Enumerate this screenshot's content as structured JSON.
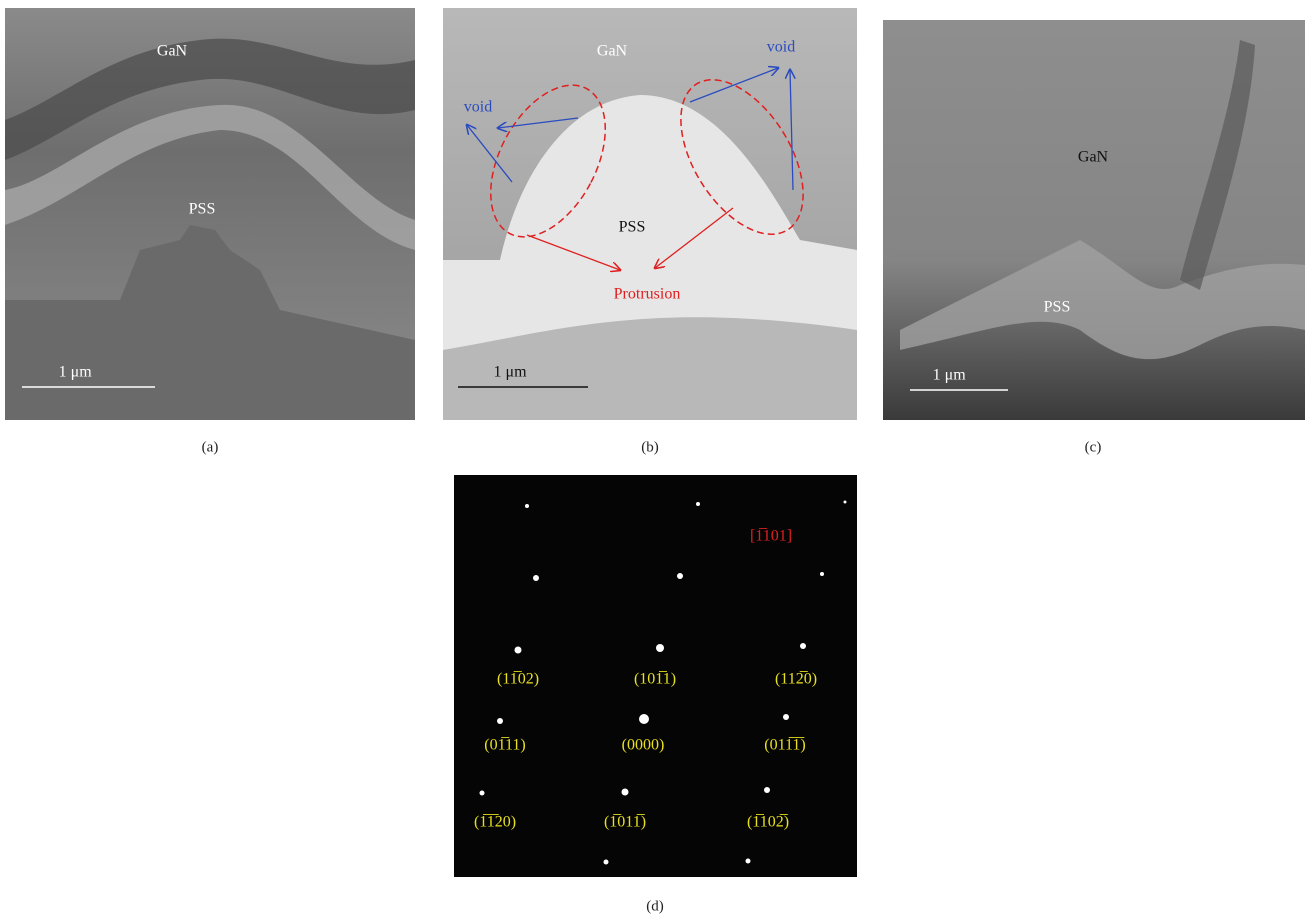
{
  "panels": [
    {
      "labels": [
        "GaN",
        "PSS"
      ],
      "scale_bar": "1 μm",
      "caption": "(a)"
    },
    {
      "labels": [
        "GaN",
        "void",
        "void",
        "PSS",
        "Protrusion"
      ],
      "scale_bar": "1 μm",
      "caption": "(b)"
    },
    {
      "labels": [
        "GaN",
        "PSS"
      ],
      "scale_bar": "1 μm",
      "caption": "(c)"
    },
    {
      "labels": [
        "[1̅101]",
        "(11̅02)",
        "(101̅1)",
        "(112̅0)",
        "(01̅11)",
        "(0000)",
        "(011̅1̅)",
        "(1̅1̅20)",
        "(1̅011̅)",
        "(1̅102̅)"
      ],
      "caption": "(d)"
    }
  ]
}
